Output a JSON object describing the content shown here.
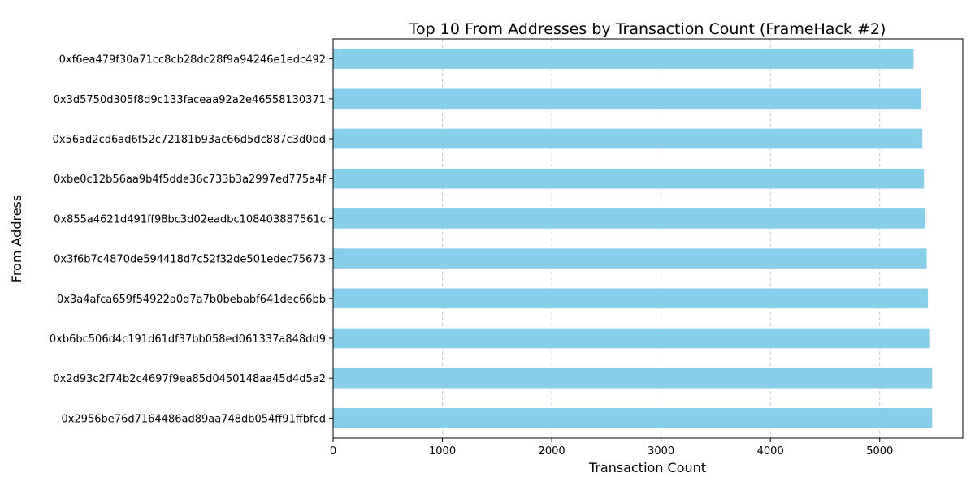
{
  "chart_data": {
    "type": "bar",
    "orientation": "horizontal",
    "title": "Top 10 From Addresses by Transaction Count (FrameHack #2)",
    "xlabel": "Transaction Count",
    "ylabel": "From Address",
    "xlim": [
      0,
      5760
    ],
    "xticks": [
      "0",
      "1000",
      "2000",
      "3000",
      "4000",
      "5000"
    ],
    "grid": "x-axis dashed",
    "colors": {
      "bar": "#87CEEB",
      "grid": "#c8c8c8",
      "axis": "#000000"
    },
    "categories": [
      "0xf6ea479f30a71cc8cb28dc28f9a94246e1edc492",
      "0x3d5750d305f8d9c133faceaa92a2e46558130371",
      "0x56ad2cd6ad6f52c72181b93ac66d5dc887c3d0bd",
      "0xbe0c12b56aa9b4f5dde36c733b3a2997ed775a4f",
      "0x855a4621d491ff98bc3d02eadbc108403887561c",
      "0x3f6b7c4870de594418d7c52f32de501edec75673",
      "0x3a4afca659f54922a0d7a7b0bebabf641dec66bb",
      "0xb6bc506d4c191d61df37bb058ed061337a848dd9",
      "0x2d93c2f74b2c4697f9ea85d0450148aa45d4d5a2",
      "0x2956be76d7164486ad89aa748db054ff91ffbfcd"
    ],
    "values": [
      5310,
      5380,
      5390,
      5405,
      5415,
      5430,
      5440,
      5460,
      5480,
      5480
    ]
  }
}
